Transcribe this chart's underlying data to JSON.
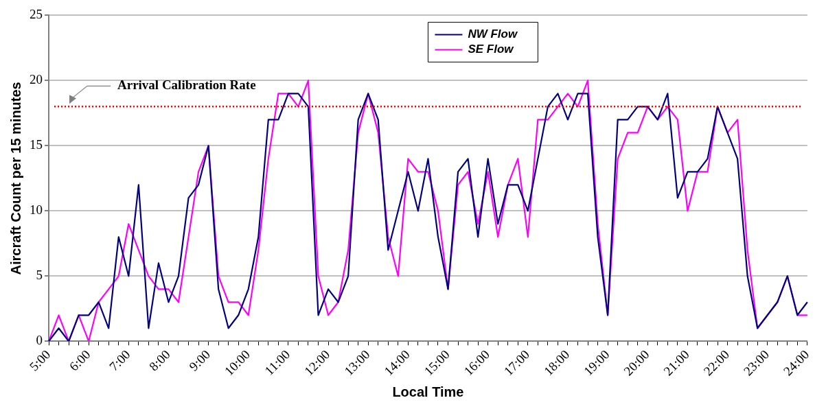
{
  "chart_data": {
    "type": "line",
    "xlabel": "Local Time",
    "ylabel": "Aircraft Count per 15 minutes",
    "categories": [
      "5:00",
      null,
      null,
      null,
      "6:00",
      null,
      null,
      null,
      "7:00",
      null,
      null,
      null,
      "8:00",
      null,
      null,
      null,
      "9:00",
      null,
      null,
      null,
      "10:00",
      null,
      null,
      null,
      "11:00",
      null,
      null,
      null,
      "12:00",
      null,
      null,
      null,
      "13:00",
      null,
      null,
      null,
      "14:00",
      null,
      null,
      null,
      "15:00",
      null,
      null,
      null,
      "16:00",
      null,
      null,
      null,
      "17:00",
      null,
      null,
      null,
      "18:00",
      null,
      null,
      null,
      "19:00",
      null,
      null,
      null,
      "20:00",
      null,
      null,
      null,
      "21:00",
      null,
      null,
      null,
      "22:00",
      null,
      null,
      null,
      "23:00",
      null,
      null,
      null,
      "24:00"
    ],
    "series": [
      {
        "name": "NW Flow",
        "color": "#000080",
        "values": [
          0,
          1,
          0,
          2,
          2,
          3,
          1,
          8,
          5,
          12,
          1,
          6,
          3,
          5,
          11,
          12,
          15,
          4,
          1,
          2,
          4,
          8,
          17,
          17,
          19,
          19,
          18,
          2,
          4,
          3,
          5,
          17,
          19,
          17,
          7,
          10,
          13,
          10,
          14,
          8,
          4,
          13,
          14,
          8,
          14,
          9,
          12,
          12,
          10,
          14,
          18,
          19,
          17,
          19,
          19,
          8,
          2,
          17,
          17,
          18,
          18,
          17,
          19,
          11,
          13,
          13,
          14,
          18,
          16,
          14,
          5,
          1,
          2,
          3,
          5,
          2,
          3
        ]
      },
      {
        "name": "SE Flow",
        "color": "#ff00ff",
        "values": [
          0,
          2,
          0,
          2,
          0,
          3,
          4,
          5,
          9,
          7,
          5,
          4,
          4,
          3,
          8,
          13,
          15,
          5,
          3,
          3,
          2,
          7,
          14,
          19,
          19,
          18,
          20,
          5,
          2,
          3,
          7,
          16,
          19,
          16,
          8,
          5,
          14,
          13,
          13,
          10,
          4,
          12,
          13,
          9,
          13,
          8,
          12,
          14,
          8,
          17,
          17,
          18,
          19,
          18,
          20,
          9,
          2,
          14,
          16,
          16,
          18,
          17,
          18,
          17,
          10,
          13,
          13,
          18,
          16,
          17,
          7,
          1,
          2,
          3,
          5,
          2,
          2
        ]
      }
    ],
    "ylim": [
      0,
      25
    ],
    "yticks": [
      0,
      5,
      10,
      15,
      20,
      25
    ],
    "grid": "y",
    "legend": "top",
    "marker": "none",
    "line_style": "solid",
    "ref_lines": [
      {
        "axis": "y",
        "value": 18,
        "label": "Arrival Calibration Rate",
        "color": "#ff0000",
        "line_style": "dotted"
      }
    ]
  }
}
